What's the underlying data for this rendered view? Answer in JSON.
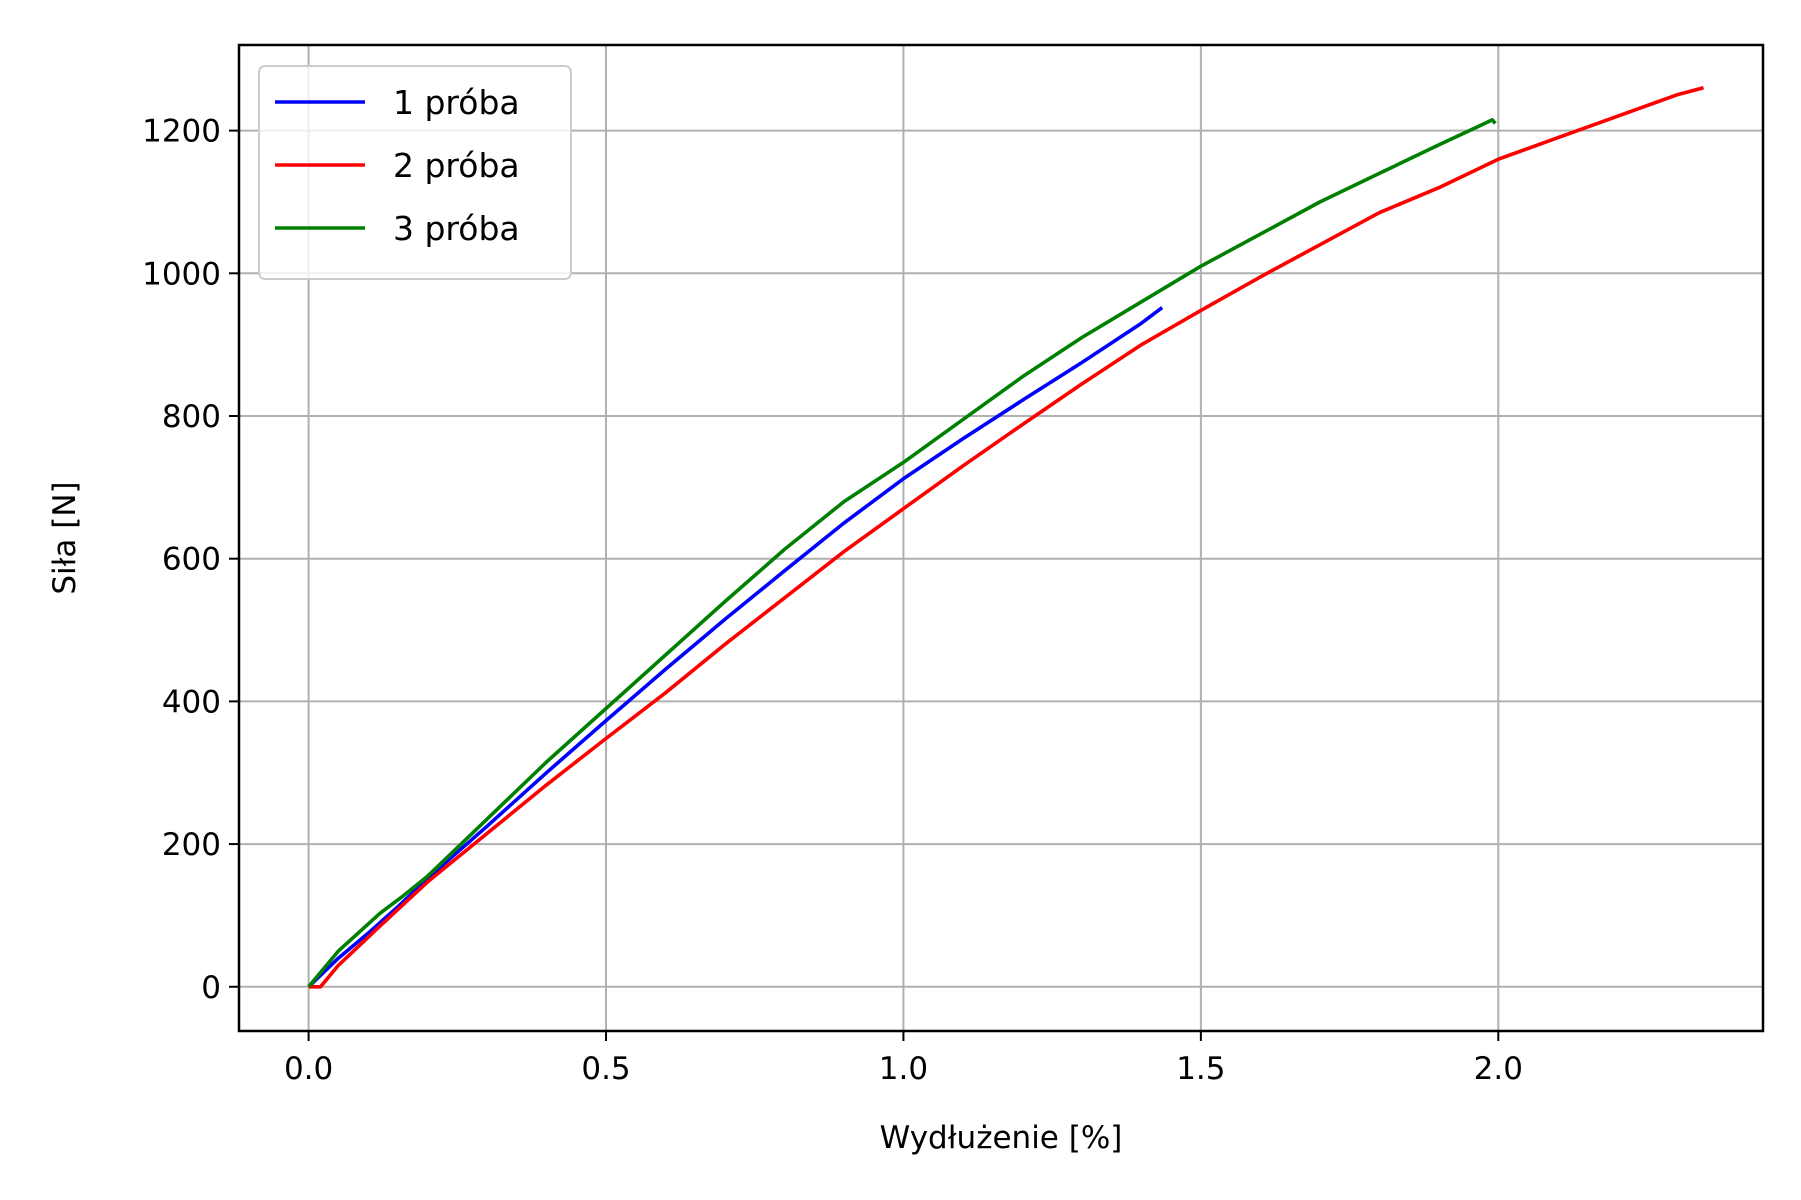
{
  "chart_data": {
    "type": "line",
    "xlabel": "Wydłużenie [%]",
    "ylabel": "Siła [N]",
    "xlim": [
      -0.117,
      2.445
    ],
    "ylim": [
      -62,
      1320
    ],
    "grid": true,
    "legend_position": "top-left",
    "x_ticks": [
      {
        "value": 0.0,
        "label": "0.0"
      },
      {
        "value": 0.5,
        "label": "0.5"
      },
      {
        "value": 1.0,
        "label": "1.0"
      },
      {
        "value": 1.5,
        "label": "1.5"
      },
      {
        "value": 2.0,
        "label": "2.0"
      }
    ],
    "y_ticks": [
      {
        "value": 0,
        "label": "0"
      },
      {
        "value": 200,
        "label": "200"
      },
      {
        "value": 400,
        "label": "400"
      },
      {
        "value": 600,
        "label": "600"
      },
      {
        "value": 800,
        "label": "800"
      },
      {
        "value": 1000,
        "label": "1000"
      },
      {
        "value": 1200,
        "label": "1200"
      }
    ],
    "series": [
      {
        "name": "1 próba",
        "color": "#0000ff",
        "points": [
          [
            0.0,
            0
          ],
          [
            0.05,
            40
          ],
          [
            0.1,
            75
          ],
          [
            0.15,
            112
          ],
          [
            0.2,
            152
          ],
          [
            0.3,
            225
          ],
          [
            0.4,
            300
          ],
          [
            0.5,
            373
          ],
          [
            0.6,
            445
          ],
          [
            0.7,
            515
          ],
          [
            0.8,
            583
          ],
          [
            0.9,
            650
          ],
          [
            1.0,
            712
          ],
          [
            1.1,
            768
          ],
          [
            1.2,
            822
          ],
          [
            1.3,
            875
          ],
          [
            1.4,
            930
          ],
          [
            1.435,
            952
          ]
        ]
      },
      {
        "name": "2 próba",
        "color": "#ff0000",
        "points": [
          [
            0.0,
            0
          ],
          [
            0.02,
            0
          ],
          [
            0.05,
            30
          ],
          [
            0.12,
            85
          ],
          [
            0.2,
            147
          ],
          [
            0.3,
            215
          ],
          [
            0.4,
            283
          ],
          [
            0.5,
            348
          ],
          [
            0.6,
            412
          ],
          [
            0.7,
            480
          ],
          [
            0.8,
            545
          ],
          [
            0.9,
            610
          ],
          [
            1.0,
            670
          ],
          [
            1.1,
            730
          ],
          [
            1.2,
            788
          ],
          [
            1.3,
            845
          ],
          [
            1.4,
            900
          ],
          [
            1.5,
            948
          ],
          [
            1.6,
            995
          ],
          [
            1.7,
            1040
          ],
          [
            1.8,
            1085
          ],
          [
            1.9,
            1120
          ],
          [
            2.0,
            1160
          ],
          [
            2.1,
            1190
          ],
          [
            2.2,
            1220
          ],
          [
            2.3,
            1250
          ],
          [
            2.345,
            1260
          ]
        ]
      },
      {
        "name": "3 próba",
        "color": "#008000",
        "points": [
          [
            0.0,
            0
          ],
          [
            0.05,
            50
          ],
          [
            0.12,
            103
          ],
          [
            0.16,
            128
          ],
          [
            0.2,
            155
          ],
          [
            0.3,
            235
          ],
          [
            0.4,
            315
          ],
          [
            0.5,
            390
          ],
          [
            0.6,
            465
          ],
          [
            0.7,
            540
          ],
          [
            0.8,
            613
          ],
          [
            0.9,
            680
          ],
          [
            1.0,
            735
          ],
          [
            1.1,
            795
          ],
          [
            1.2,
            855
          ],
          [
            1.3,
            910
          ],
          [
            1.4,
            960
          ],
          [
            1.5,
            1010
          ],
          [
            1.6,
            1055
          ],
          [
            1.7,
            1100
          ],
          [
            1.8,
            1140
          ],
          [
            1.9,
            1180
          ],
          [
            1.99,
            1215
          ],
          [
            1.995,
            1210
          ]
        ]
      }
    ]
  }
}
